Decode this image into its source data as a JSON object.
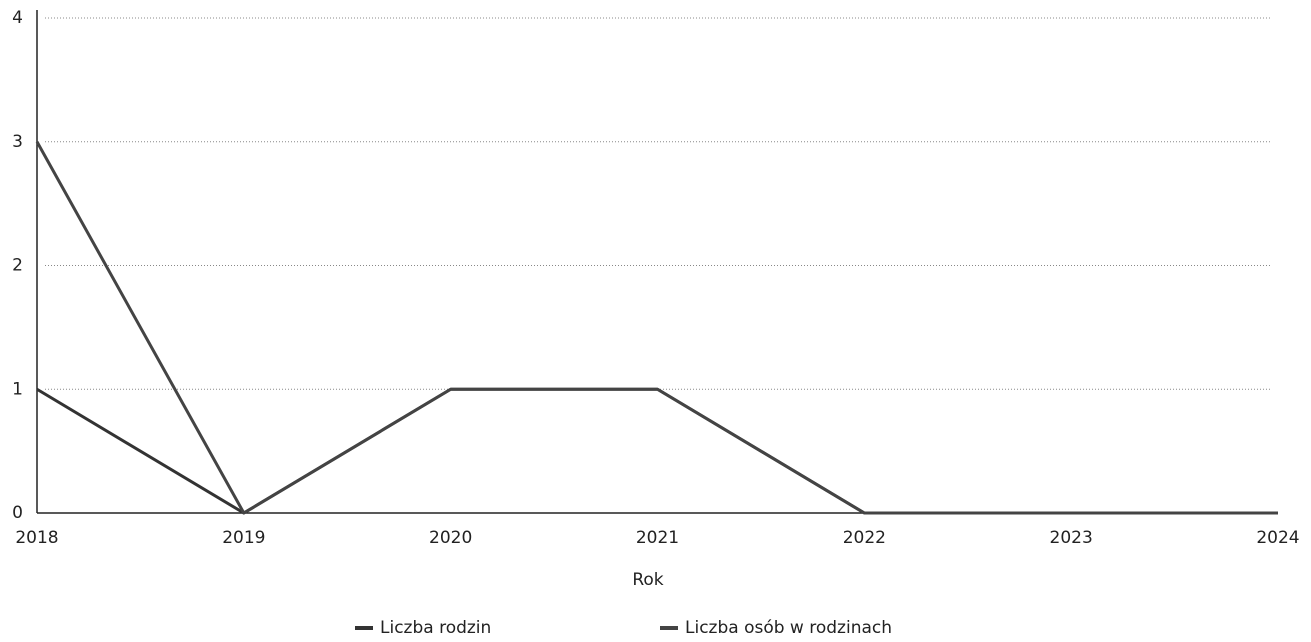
{
  "chart_data": {
    "type": "line",
    "x_label": "Rok",
    "categories": [
      "2018",
      "2019",
      "2020",
      "2021",
      "2022",
      "2023",
      "2024"
    ],
    "series": [
      {
        "name": "Liczba rodzin",
        "color": "#333333",
        "values": [
          1,
          0,
          1,
          1,
          0,
          0,
          0
        ]
      },
      {
        "name": "Liczba osób w rodzinach",
        "color": "#444444",
        "values": [
          3,
          0,
          1,
          1,
          0,
          0,
          0
        ]
      }
    ],
    "ylim": [
      0,
      4
    ],
    "yticks": [
      0,
      1,
      2,
      3,
      4
    ],
    "grid": true,
    "legend": "bottom"
  }
}
